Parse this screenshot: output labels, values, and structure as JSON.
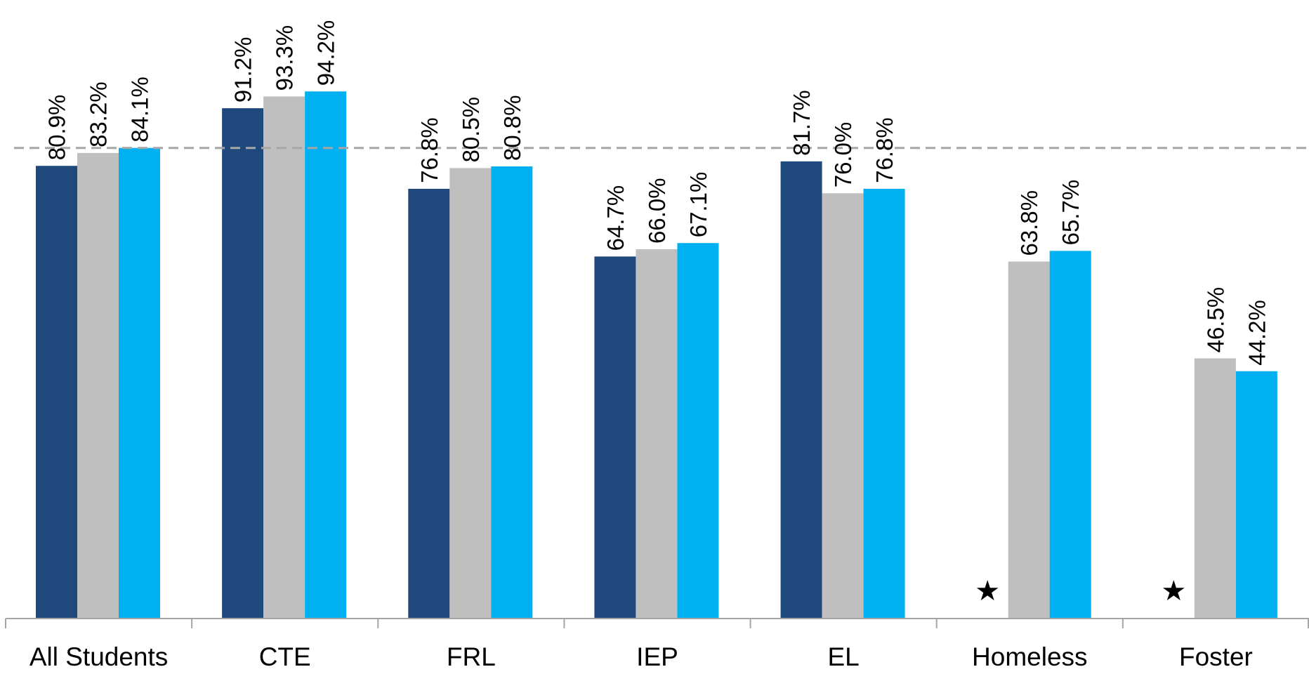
{
  "chart_data": {
    "type": "bar",
    "categories": [
      "All Students",
      "CTE",
      "FRL",
      "IEP",
      "EL",
      "Homeless",
      "Foster"
    ],
    "series": [
      {
        "color": "#1f497d",
        "values": [
          80.9,
          91.2,
          76.8,
          64.7,
          81.7,
          null,
          null
        ],
        "labels": [
          "80.9%",
          "91.2%",
          "76.8%",
          "64.7%",
          "81.7%",
          "",
          ""
        ],
        "suppressed_marker": "★"
      },
      {
        "color": "#bfbfbf",
        "values": [
          83.2,
          93.3,
          80.5,
          66.0,
          76.0,
          63.8,
          46.5
        ],
        "labels": [
          "83.2%",
          "93.3%",
          "80.5%",
          "66.0%",
          "76.0%",
          "63.8%",
          "46.5%"
        ]
      },
      {
        "color": "#00b0f0",
        "values": [
          84.1,
          94.2,
          80.8,
          67.1,
          76.8,
          65.7,
          44.2
        ],
        "labels": [
          "84.1%",
          "94.2%",
          "80.8%",
          "67.1%",
          "76.8%",
          "65.7%",
          "44.2%"
        ]
      }
    ],
    "reference_line": {
      "value": 84.1,
      "style": "dashed",
      "color": "#a6a6a6"
    },
    "ylim": [
      0,
      100
    ],
    "grid": false,
    "legend": "none",
    "title": "",
    "xlabel": "",
    "ylabel": ""
  }
}
